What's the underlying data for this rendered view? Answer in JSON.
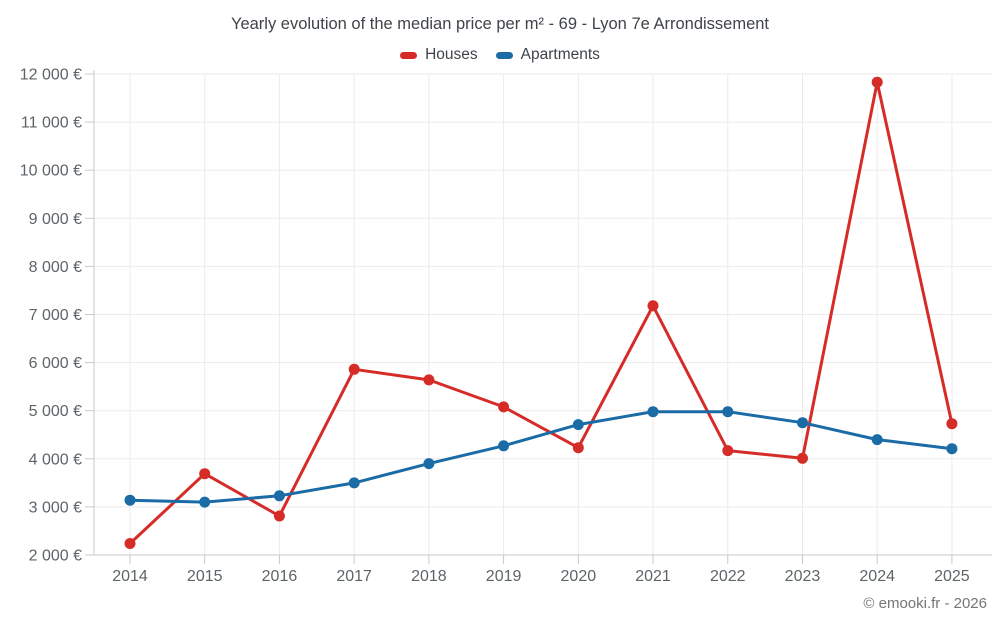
{
  "title": "Yearly evolution of the median price per m² - 69 - Lyon 7e Arrondissement",
  "legend": [
    {
      "label": "Houses",
      "color": "#d62c28"
    },
    {
      "label": "Apartments",
      "color": "#1b6ca6"
    }
  ],
  "footer": {
    "text": "© emooki.fr - 2026"
  },
  "chart_data": {
    "type": "line",
    "title": "Yearly evolution of the median price per m² - 69 - Lyon 7e Arrondissement",
    "x": [
      2014,
      2015,
      2016,
      2017,
      2018,
      2019,
      2020,
      2021,
      2022,
      2023,
      2024,
      2025
    ],
    "series": [
      {
        "name": "Houses",
        "color": "#d62c28",
        "values": [
          2240,
          3690,
          2810,
          5860,
          5640,
          5080,
          4230,
          7180,
          4170,
          4010,
          11830,
          4730
        ]
      },
      {
        "name": "Apartments",
        "color": "#1b6ca6",
        "values": [
          3140,
          3100,
          3230,
          3500,
          3900,
          4270,
          4710,
          4980,
          4980,
          4750,
          4400,
          4210
        ]
      }
    ],
    "xlabel": "",
    "ylabel": "",
    "ytick_suffix": "€",
    "ylim": [
      2000,
      12000
    ],
    "ytick_step": 1000,
    "grid": true,
    "legend_position": "top",
    "colors": {
      "gridline": "#ebebeb",
      "axis_line": "#c9c9c9",
      "tick_label": "#5d6468"
    }
  }
}
